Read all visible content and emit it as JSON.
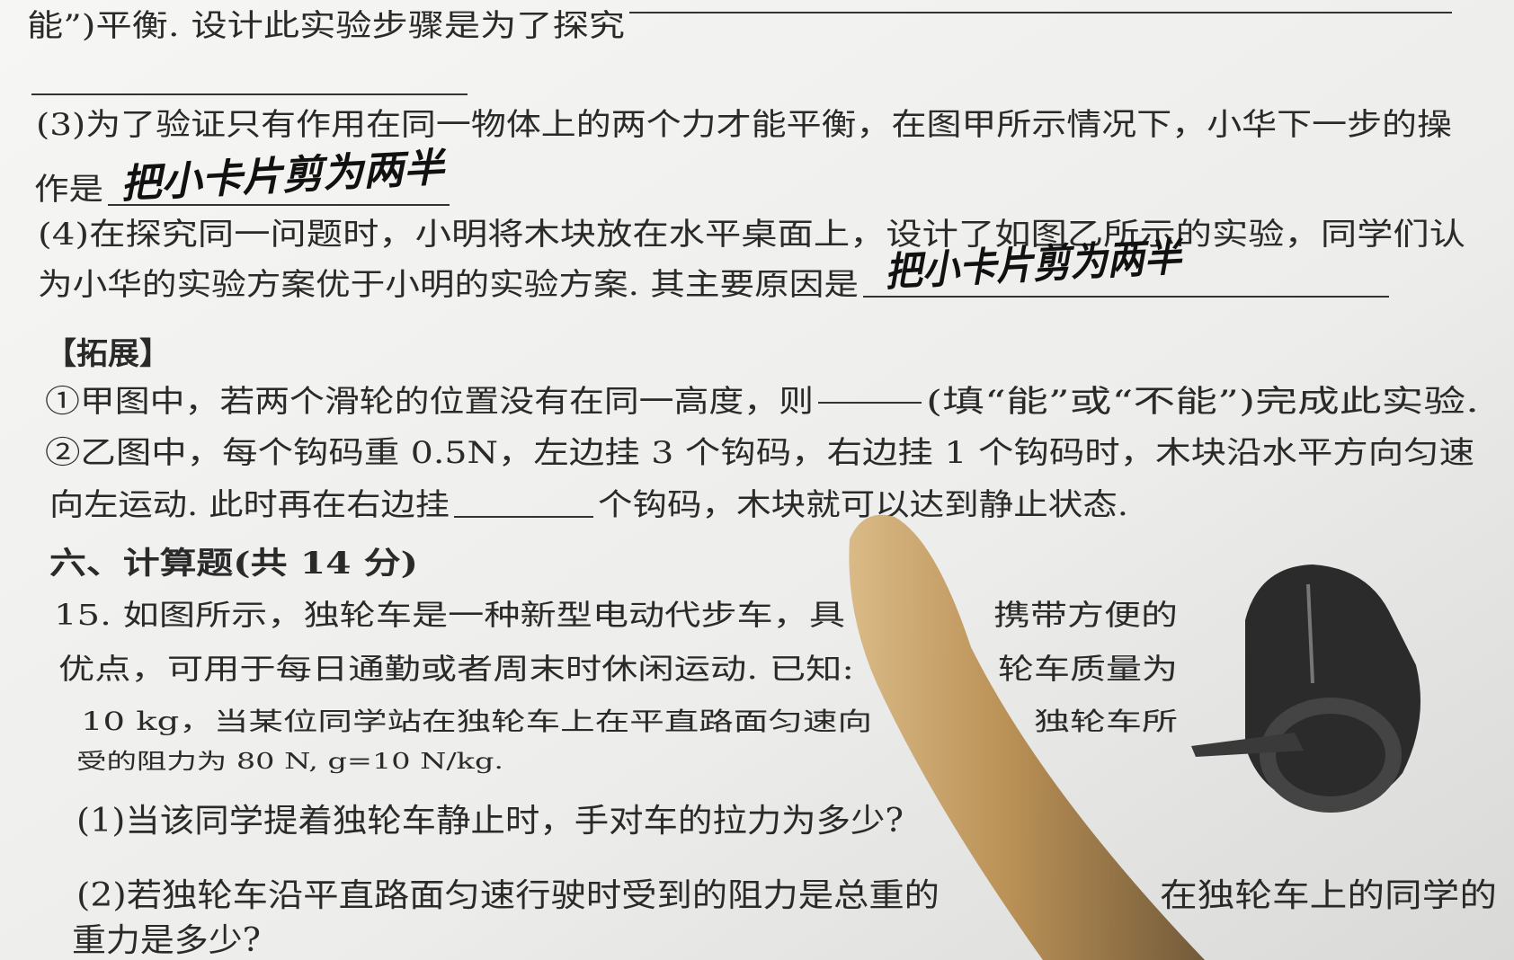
{
  "lines": [
    {
      "parts": [
        "能”)平衡. 设计此实验步骤是为了探究"
      ]
    },
    {
      "parts": [
        "(3)为了验证只有作用在同一物体上的两个力才能平衡，在图甲所示情况下，小华下一步的操"
      ]
    },
    {
      "parts": [
        "作是"
      ]
    },
    {
      "parts": [
        "(4)在探究同一问题时，小明将木块放在水平桌面上，设计了如图乙所示的实验，同学们认"
      ]
    },
    {
      "parts": [
        "为小华的实验方案优于小明的实验方案. 其主要原因是"
      ]
    },
    {
      "parts": [
        "【拓展】"
      ]
    },
    {
      "parts": [
        "①甲图中，若两个滑轮的位置没有在同一高度，则",
        "(填“能”或“不能”)完成此实验."
      ]
    },
    {
      "parts": [
        "②乙图中，每个钩码重 0.5N，左边挂 3 个钩码，右边挂 1 个钩码时，木块沿水平方向匀速"
      ]
    },
    {
      "parts": [
        "向左运动. 此时再在右边挂",
        "个钩码，木块就可以达到静止状态."
      ]
    },
    {
      "parts": [
        "六、计算题(共 14 分)"
      ]
    },
    {
      "parts": [
        "15. 如图所示，独轮车是一种新型电动代步车，具",
        "携带方便的"
      ]
    },
    {
      "parts": [
        "优点，可用于每日通勤或者周末时休闲运动. 已知:",
        "轮车质量为"
      ]
    },
    {
      "parts": [
        "10 kg，当某位同学站在独轮车上在平直路面匀速向",
        "独轮车所"
      ]
    },
    {
      "parts": [
        "受的阻力为 80 N, g=10 N/kg."
      ]
    },
    {
      "parts": [
        "(1)当该同学提着独轮车静止时，手对车的拉力为多少?"
      ]
    },
    {
      "parts": [
        "(2)若独轮车沿平直路面匀速行驶时受到的阻力是总重的",
        "在独轮车上的同学的"
      ]
    },
    {
      "parts": [
        "重力是多少?"
      ]
    }
  ],
  "handwriting": [
    "把小卡片剪为两半",
    "把小卡片剪为两半"
  ]
}
